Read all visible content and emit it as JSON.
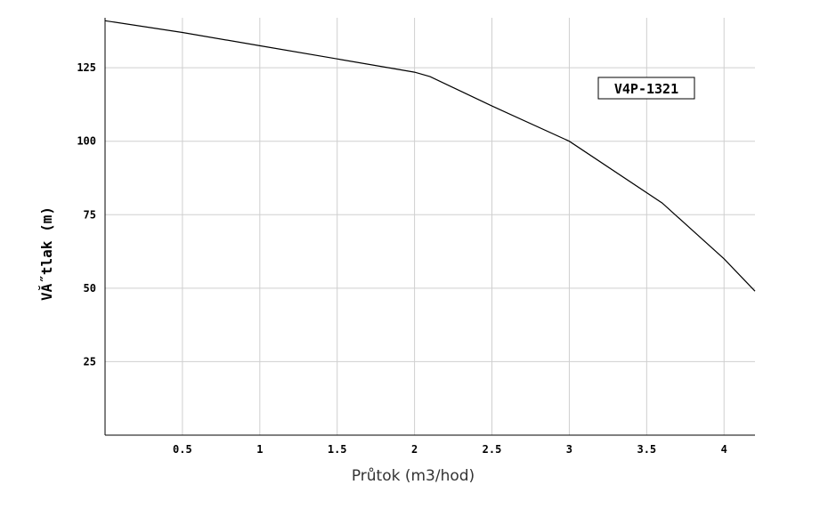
{
  "chart_data": {
    "type": "line",
    "title": "",
    "xlabel": "Průtok (m3/hod)",
    "ylabel": "VĂ˝tlak (m)",
    "xlim": [
      0,
      4.2
    ],
    "ylim": [
      0,
      142
    ],
    "x_ticks": [
      0.5,
      1,
      1.5,
      2,
      2.5,
      3,
      3.5,
      4
    ],
    "x_tick_labels": [
      "0.5",
      "1",
      "1.5",
      "2",
      "2.5",
      "3",
      "3.5",
      "4"
    ],
    "y_ticks": [
      25,
      50,
      75,
      100,
      125
    ],
    "y_tick_labels": [
      "25",
      "50",
      "75",
      "100",
      "125"
    ],
    "grid": true,
    "series": [
      {
        "name": "V4P-1321",
        "color": "#000000",
        "x": [
          0,
          0.5,
          1,
          1.5,
          2,
          2.1,
          2.5,
          3,
          3.6,
          4,
          4.2
        ],
        "y": [
          141,
          137,
          132.5,
          128,
          123.5,
          122,
          112,
          100,
          79,
          60,
          49
        ]
      }
    ],
    "legend": {
      "placement": "top-right",
      "label": "V4P-1321"
    }
  }
}
